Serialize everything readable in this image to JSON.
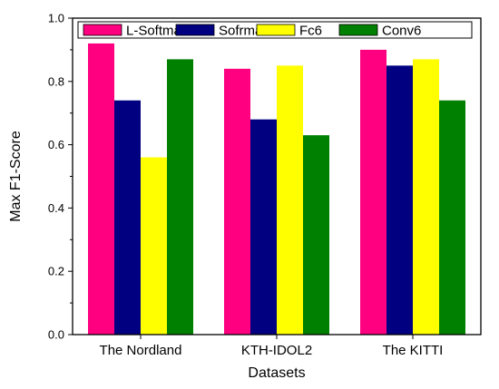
{
  "chart_data": {
    "type": "bar",
    "title": "",
    "xlabel": "Datasets",
    "ylabel": "Max F1-Score",
    "ylim": [
      0.0,
      1.0
    ],
    "yticks": [
      "0.0",
      "0.2",
      "0.4",
      "0.6",
      "0.8",
      "1.0"
    ],
    "grid": false,
    "legend_position": "top",
    "categories": [
      "The Nordland",
      "KTH-IDOL2",
      "The KITTI"
    ],
    "series": [
      {
        "name": "L-Softmax",
        "color": "#ff0080",
        "values": [
          0.92,
          0.84,
          0.9
        ]
      },
      {
        "name": "Sofrmax",
        "color": "#000080",
        "values": [
          0.74,
          0.68,
          0.85
        ]
      },
      {
        "name": "Fc6",
        "color": "#ffff00",
        "values": [
          0.56,
          0.85,
          0.87
        ]
      },
      {
        "name": "Conv6",
        "color": "#008000",
        "values": [
          0.87,
          0.63,
          0.74
        ]
      }
    ]
  }
}
